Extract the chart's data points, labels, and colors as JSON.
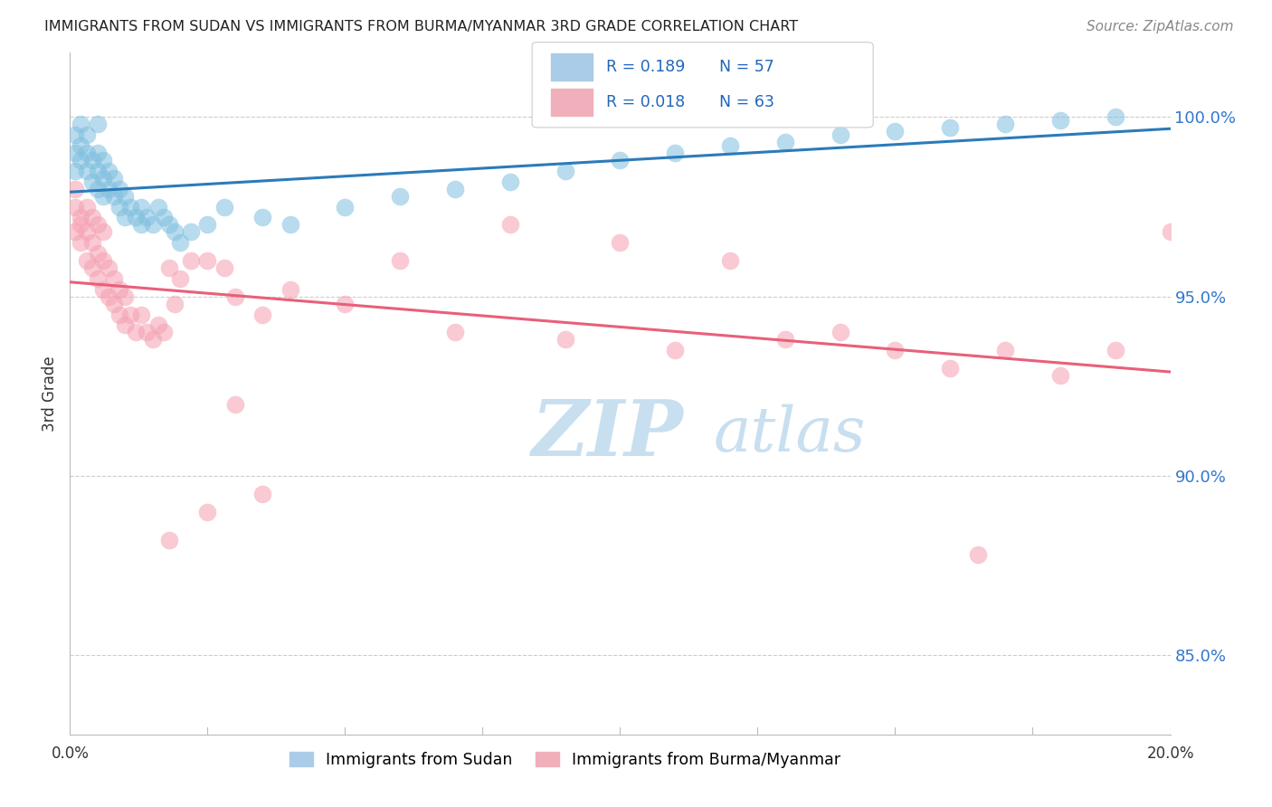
{
  "title": "IMMIGRANTS FROM SUDAN VS IMMIGRANTS FROM BURMA/MYANMAR 3RD GRADE CORRELATION CHART",
  "source": "Source: ZipAtlas.com",
  "ylabel": "3rd Grade",
  "xlim": [
    0.0,
    0.2
  ],
  "ylim": [
    0.828,
    1.018
  ],
  "yticks": [
    0.85,
    0.9,
    0.95,
    1.0
  ],
  "right_ytick_labels": [
    "85.0%",
    "90.0%",
    "95.0%",
    "100.0%"
  ],
  "sudan_R": 0.189,
  "sudan_N": 57,
  "burma_R": 0.018,
  "burma_N": 63,
  "legend_label_sudan": "Immigrants from Sudan",
  "legend_label_burma": "Immigrants from Burma/Myanmar",
  "sudan_color": "#7fbfdf",
  "burma_color": "#f5a0b0",
  "sudan_line_color": "#2b7bba",
  "burma_line_color": "#e8607a",
  "watermark_zip": "ZIP",
  "watermark_atlas": "atlas",
  "watermark_color": "#c8dff0",
  "background_color": "#ffffff",
  "sudan_x": [
    0.001,
    0.001,
    0.001,
    0.002,
    0.002,
    0.002,
    0.003,
    0.003,
    0.003,
    0.004,
    0.004,
    0.005,
    0.005,
    0.005,
    0.005,
    0.006,
    0.006,
    0.006,
    0.007,
    0.007,
    0.008,
    0.008,
    0.009,
    0.009,
    0.01,
    0.01,
    0.011,
    0.012,
    0.013,
    0.013,
    0.014,
    0.015,
    0.016,
    0.017,
    0.018,
    0.019,
    0.02,
    0.022,
    0.025,
    0.028,
    0.035,
    0.04,
    0.05,
    0.06,
    0.07,
    0.08,
    0.09,
    0.1,
    0.11,
    0.12,
    0.13,
    0.14,
    0.15,
    0.16,
    0.17,
    0.18,
    0.19
  ],
  "sudan_y": [
    0.985,
    0.99,
    0.995,
    0.988,
    0.992,
    0.998,
    0.985,
    0.99,
    0.995,
    0.982,
    0.988,
    0.98,
    0.985,
    0.99,
    0.998,
    0.978,
    0.983,
    0.988,
    0.98,
    0.985,
    0.978,
    0.983,
    0.975,
    0.98,
    0.972,
    0.978,
    0.975,
    0.972,
    0.975,
    0.97,
    0.972,
    0.97,
    0.975,
    0.972,
    0.97,
    0.968,
    0.965,
    0.968,
    0.97,
    0.975,
    0.972,
    0.97,
    0.975,
    0.978,
    0.98,
    0.982,
    0.985,
    0.988,
    0.99,
    0.992,
    0.993,
    0.995,
    0.996,
    0.997,
    0.998,
    0.999,
    1.0
  ],
  "burma_x": [
    0.001,
    0.001,
    0.001,
    0.002,
    0.002,
    0.002,
    0.003,
    0.003,
    0.003,
    0.004,
    0.004,
    0.004,
    0.005,
    0.005,
    0.005,
    0.006,
    0.006,
    0.006,
    0.007,
    0.007,
    0.008,
    0.008,
    0.009,
    0.009,
    0.01,
    0.01,
    0.011,
    0.012,
    0.013,
    0.014,
    0.015,
    0.016,
    0.017,
    0.018,
    0.019,
    0.02,
    0.022,
    0.025,
    0.028,
    0.03,
    0.035,
    0.04,
    0.05,
    0.06,
    0.07,
    0.08,
    0.09,
    0.1,
    0.11,
    0.12,
    0.13,
    0.14,
    0.15,
    0.16,
    0.17,
    0.18,
    0.19,
    0.2,
    0.025,
    0.03,
    0.035,
    0.018,
    0.165
  ],
  "burma_y": [
    0.975,
    0.98,
    0.968,
    0.972,
    0.965,
    0.97,
    0.96,
    0.968,
    0.975,
    0.958,
    0.965,
    0.972,
    0.955,
    0.962,
    0.97,
    0.952,
    0.96,
    0.968,
    0.95,
    0.958,
    0.948,
    0.955,
    0.945,
    0.952,
    0.942,
    0.95,
    0.945,
    0.94,
    0.945,
    0.94,
    0.938,
    0.942,
    0.94,
    0.958,
    0.948,
    0.955,
    0.96,
    0.96,
    0.958,
    0.95,
    0.945,
    0.952,
    0.948,
    0.96,
    0.94,
    0.97,
    0.938,
    0.965,
    0.935,
    0.96,
    0.938,
    0.94,
    0.935,
    0.93,
    0.935,
    0.928,
    0.935,
    0.968,
    0.89,
    0.92,
    0.895,
    0.882,
    0.878
  ]
}
